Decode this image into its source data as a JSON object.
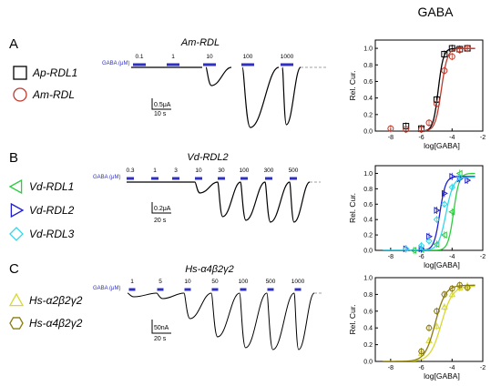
{
  "header": {
    "title": "GABA"
  },
  "colors": {
    "black": "#000000",
    "red": "#c0392b",
    "green": "#2ecc40",
    "blue": "#1f1fcf",
    "cyan": "#33d6e8",
    "olive": "#8a7a10",
    "yellow": "#d8d830",
    "stim": "#3030c0",
    "dash": "#a0a0a0"
  },
  "panels": [
    {
      "letter": "A",
      "trace_title": "Am-RDL",
      "conc_unit": "GABA (μM)",
      "concentrations": [
        "0.1",
        "1",
        "10",
        "100",
        "1000"
      ],
      "scale_current": "0.5μA",
      "scale_time": "10 s",
      "legend": [
        {
          "name": "Ap-RDL1",
          "marker": "square",
          "color": "#000000"
        },
        {
          "name": "Am-RDL",
          "marker": "circle",
          "color": "#c0392b"
        }
      ]
    },
    {
      "letter": "B",
      "trace_title": "Vd-RDL2",
      "conc_unit": "GABA (μM)",
      "concentrations": [
        "0.3",
        "1",
        "3",
        "10",
        "30",
        "100",
        "300",
        "500"
      ],
      "scale_current": "0.2μA",
      "scale_time": "20 s",
      "legend": [
        {
          "name": "Vd-RDL1",
          "marker": "tri-left",
          "color": "#2ecc40"
        },
        {
          "name": "Vd-RDL2",
          "marker": "tri-right",
          "color": "#1f1fcf"
        },
        {
          "name": "Vd-RDL3",
          "marker": "diamond",
          "color": "#33d6e8"
        }
      ]
    },
    {
      "letter": "C",
      "trace_title": "Hs-α4β2γ2",
      "conc_unit": "GABA (μM)",
      "concentrations": [
        "1",
        "5",
        "10",
        "50",
        "100",
        "500",
        "1000"
      ],
      "scale_current": "50nA",
      "scale_time": "20 s",
      "legend": [
        {
          "name": "Hs-α2β2γ2",
          "marker": "tri-up",
          "color": "#d8d830"
        },
        {
          "name": "Hs-α4β2γ2",
          "marker": "hexagon",
          "color": "#8a7a10"
        }
      ]
    }
  ],
  "chart_data": [
    {
      "type": "scatter",
      "xlabel": "log[GABA]",
      "ylabel": "Rel. Cur.",
      "xlim": [
        -9,
        -2
      ],
      "ylim": [
        0,
        1.1
      ],
      "xticks": [
        "-8",
        "-6",
        "-4",
        "-2"
      ],
      "yticks": [
        "0.0",
        "0.2",
        "0.4",
        "0.6",
        "0.8",
        "1.0"
      ],
      "series": [
        {
          "name": "Ap-RDL1",
          "marker": "square",
          "color": "#000000",
          "ec50": -4.9,
          "hill": 2.6,
          "x": [
            -7,
            -6,
            -5,
            -4.5,
            -4,
            -3.5,
            -3
          ],
          "y": [
            0.06,
            0.03,
            0.38,
            0.93,
            1.0,
            0.99,
            1.0
          ]
        },
        {
          "name": "Am-RDL",
          "marker": "circle",
          "color": "#c0392b",
          "ec50": -4.7,
          "hill": 2.2,
          "x": [
            -8,
            -7,
            -6,
            -5.5,
            -5,
            -4.5,
            -4,
            -3.5,
            -3
          ],
          "y": [
            0.03,
            0.02,
            0.02,
            0.1,
            0.33,
            0.73,
            0.9,
            0.98,
            1.0
          ]
        }
      ]
    },
    {
      "type": "scatter",
      "xlabel": "log[GABA]",
      "ylabel": "Rel. Cur.",
      "xlim": [
        -9,
        -2
      ],
      "ylim": [
        0,
        1.1
      ],
      "xticks": [
        "-8",
        "-6",
        "-4",
        "-2"
      ],
      "yticks": [
        "0.0",
        "0.2",
        "0.4",
        "0.6",
        "0.8",
        "1.0"
      ],
      "series": [
        {
          "name": "Vd-RDL1",
          "marker": "tri-left",
          "color": "#2ecc40",
          "ec50": -3.9,
          "hill": 2.4,
          "x": [
            -6.5,
            -6,
            -5,
            -4.5,
            -4,
            -3.5
          ],
          "y": [
            0.0,
            0.01,
            0.08,
            0.2,
            0.5,
            1.0
          ]
        },
        {
          "name": "Vd-RDL2",
          "marker": "tri-right",
          "color": "#1f1fcf",
          "ec50": -4.8,
          "hill": 2.3,
          "x": [
            -7,
            -6,
            -5.5,
            -5,
            -4.5,
            -4,
            -3.5,
            -3
          ],
          "y": [
            0.02,
            0.02,
            0.18,
            0.52,
            0.74,
            0.96,
            0.93,
            0.91
          ]
        },
        {
          "name": "Vd-RDL3",
          "marker": "diamond",
          "color": "#33d6e8",
          "ec50": -4.4,
          "hill": 1.8,
          "x": [
            -7,
            -6,
            -5.5,
            -5,
            -4.5,
            -4,
            -3.5
          ],
          "y": [
            0.02,
            0.06,
            0.12,
            0.4,
            0.6,
            0.82,
            0.95
          ]
        }
      ]
    },
    {
      "type": "scatter",
      "xlabel": "log[GABA]",
      "ylabel": "Rel. Cur.",
      "xlim": [
        -9,
        -2
      ],
      "ylim": [
        0,
        1.0
      ],
      "xticks": [
        "-8",
        "-6",
        "-4",
        "-2"
      ],
      "yticks": [
        "0.0",
        "0.2",
        "0.4",
        "0.6",
        "0.8",
        "1.0"
      ],
      "series": [
        {
          "name": "Hs-α2β2γ2",
          "marker": "tri-up",
          "color": "#d8d830",
          "ec50": -4.7,
          "hill": 1.2,
          "x": [
            -6,
            -5.5,
            -5,
            -4.5,
            -4,
            -3.5,
            -3
          ],
          "y": [
            0.1,
            0.25,
            0.42,
            0.65,
            0.8,
            0.88,
            0.9
          ]
        },
        {
          "name": "Hs-α4β2γ2",
          "marker": "hexagon",
          "color": "#8a7a10",
          "ec50": -5.1,
          "hill": 1.3,
          "x": [
            -6,
            -5.5,
            -5,
            -4.5,
            -4,
            -3.5,
            -3
          ],
          "y": [
            0.12,
            0.4,
            0.6,
            0.8,
            0.87,
            0.91,
            0.88
          ]
        }
      ]
    }
  ]
}
